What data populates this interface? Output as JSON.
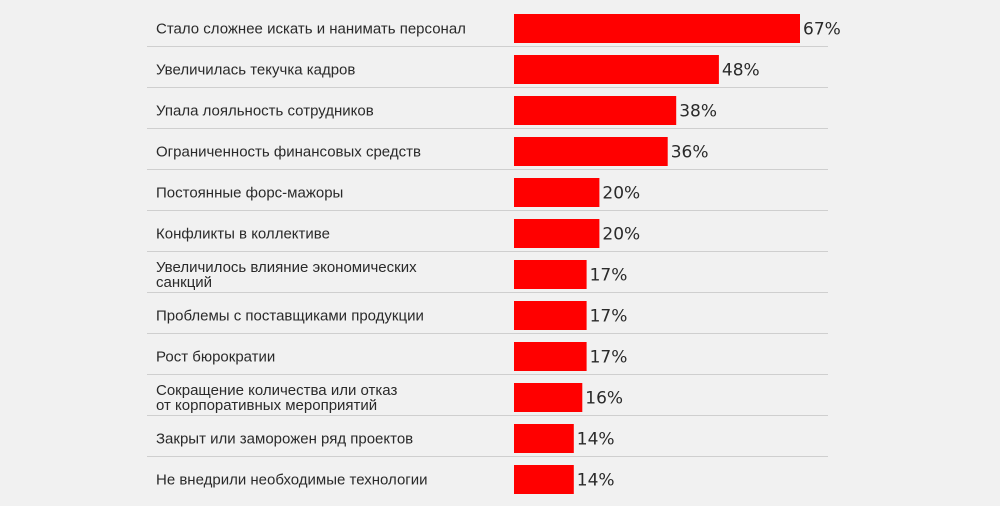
{
  "chart_data": {
    "type": "bar",
    "orientation": "horizontal",
    "title": "",
    "xlabel": "",
    "ylabel": "",
    "xlim": [
      0,
      67
    ],
    "grid": false,
    "legend": "none",
    "bar_color": "#ff0000",
    "categories": [
      [
        "Стало сложнее искать и нанимать персонал"
      ],
      [
        "Увеличилась текучка кадров"
      ],
      [
        "Упала лояльность сотрудников"
      ],
      [
        "Ограниченность финансовых средств"
      ],
      [
        "Постоянные форс-мажоры"
      ],
      [
        "Конфликты в коллективе"
      ],
      [
        "Увеличилось влияние экономических",
        "санкций"
      ],
      [
        "Проблемы с поставщиками продукции"
      ],
      [
        "Рост бюрократии"
      ],
      [
        "Сокращение количества или отказ",
        "от корпоративных мероприятий"
      ],
      [
        "Закрыт или заморожен ряд проектов"
      ],
      [
        "Не внедрили необходимые технологии"
      ]
    ],
    "values": [
      67,
      48,
      38,
      36,
      20,
      20,
      17,
      17,
      17,
      16,
      14,
      14
    ],
    "value_labels": [
      "67%",
      "48%",
      "38%",
      "36%",
      "20%",
      "20%",
      "17%",
      "17%",
      "17%",
      "16%",
      "14%",
      "14%"
    ]
  }
}
